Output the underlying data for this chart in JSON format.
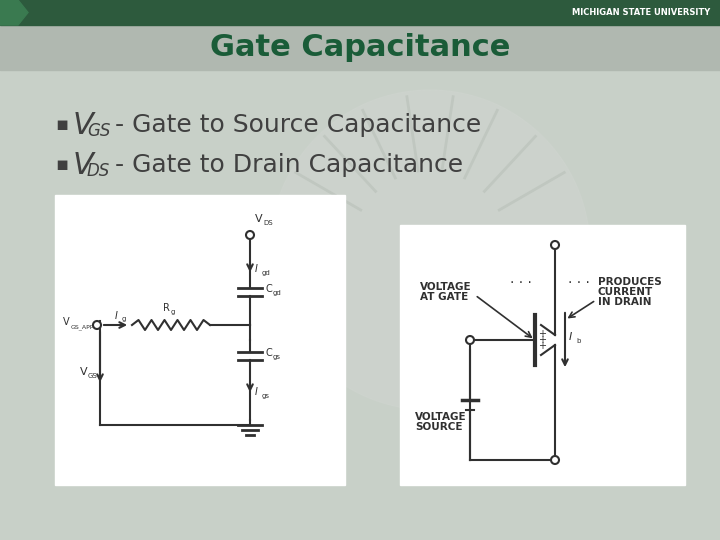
{
  "title": "Gate Capacitance",
  "title_color": "#1a5c38",
  "title_bg_color": "#b0b8b0",
  "top_bar_color": "#2d5a3d",
  "bg_color": "#c8cfc8",
  "slide_bg_color": "#c8d0c8",
  "bullet1_main": "V",
  "bullet1_sub": "GS",
  "bullet1_text": " - Gate to Source Capacitance",
  "bullet2_main": "V",
  "bullet2_sub": "DS",
  "bullet2_text": " - Gate to Drain Capacitance",
  "text_color": "#404040",
  "msu_text": "MICHIGAN STATE UNIVERSITY",
  "diagram_bg": "#ffffff",
  "watermark_color": "#d0d5d0"
}
